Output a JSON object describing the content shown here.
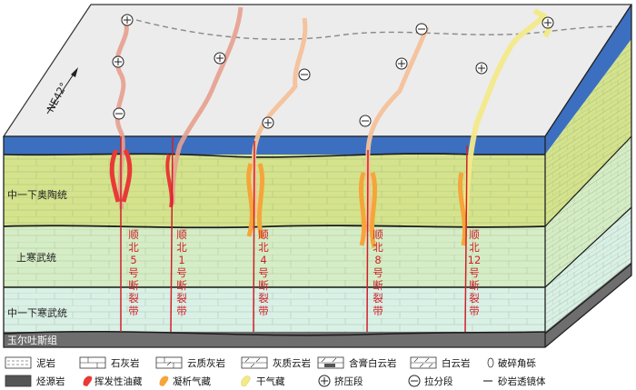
{
  "direction_label": "NE42°",
  "strata": {
    "ordovician": "中一下奥陶统",
    "upper_cambrian": "上寒武统",
    "mid_lower_cambrian": "中一下寒武统",
    "yuertusi": "玉尔吐斯组"
  },
  "fault_zones": [
    {
      "label": "顺北5号断裂带"
    },
    {
      "label": "顺北1号断裂带"
    },
    {
      "label": "顺北4号断裂带"
    },
    {
      "label": "顺北8号断裂带"
    },
    {
      "label": "顺北12号断裂带"
    }
  ],
  "segment_symbols": {
    "compressive": "⊕",
    "extensional": "⊖"
  },
  "legend": [
    {
      "label": "泥岩",
      "icon": "mudstone"
    },
    {
      "label": "石灰岩",
      "icon": "limestone"
    },
    {
      "label": "云质灰岩",
      "icon": "dolomitic-limestone"
    },
    {
      "label": "灰质云岩",
      "icon": "calcareous-dolomite"
    },
    {
      "label": "含膏白云岩",
      "icon": "gypsum-dolomite"
    },
    {
      "label": "白云岩",
      "icon": "dolomite"
    },
    {
      "label": "破碎角砾",
      "icon": "breccia"
    },
    {
      "label": "烃源岩",
      "icon": "source-rock"
    },
    {
      "label": "挥发性油藏",
      "icon": "volatile-oil"
    },
    {
      "label": "凝析气藏",
      "icon": "condensate-gas"
    },
    {
      "label": "干气藏",
      "icon": "dry-gas"
    },
    {
      "label": "挤压段",
      "icon": "compressive-segment"
    },
    {
      "label": "拉分段",
      "icon": "extensional-segment"
    },
    {
      "label": "砂岩透镜体",
      "icon": "sandstone-lens"
    }
  ],
  "colors": {
    "top_surface": "#ececec",
    "blue_layer": "#3c6fc0",
    "ordovician": "#d4e38c",
    "upper_cambrian": "#d5edc6",
    "mid_lower_cambrian": "#d9f0e6",
    "yuertusi": "#6e6e6e",
    "fault_red": "#d0202a",
    "oil": "#e83a36",
    "condensate": "#f5a53a",
    "dry_gas": "#f3e98a"
  }
}
